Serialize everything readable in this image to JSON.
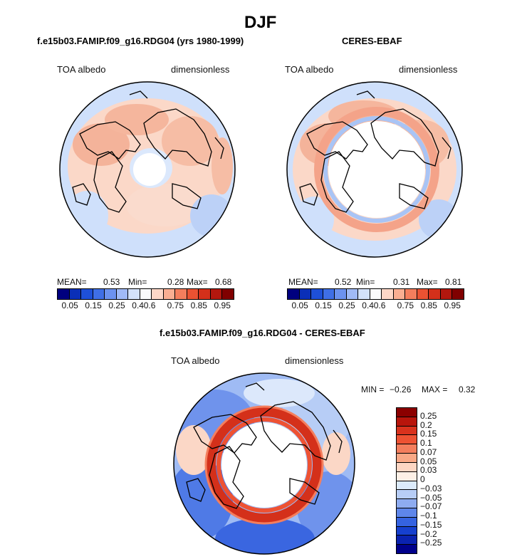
{
  "title": "DJF",
  "panels": [
    {
      "title": "f.e15b03.FAMIP.f09_g16.RDG04 (yrs 1980-1999)",
      "field_label": "TOA albedo",
      "units_label": "dimensionless",
      "mean_label": "MEAN=",
      "mean_value": "0.53",
      "min_label": "Min=",
      "min_value": "0.28",
      "max_label": "Max=",
      "max_value": "0.68"
    },
    {
      "title": "CERES-EBAF",
      "field_label": "TOA albedo",
      "units_label": "dimensionless",
      "mean_label": "MEAN=",
      "mean_value": "0.52",
      "min_label": "Min=",
      "min_value": "0.31",
      "max_label": "Max=",
      "max_value": "0.81"
    }
  ],
  "diff_panel": {
    "title": "f.e15b03.FAMIP.f09_g16.RDG04 - CERES-EBAF",
    "field_label": "TOA albedo",
    "units_label": "dimensionless",
    "min_label": "MIN =",
    "min_value": "−0.26",
    "max_label": "MAX =",
    "max_value": "0.32"
  },
  "colorbar": {
    "colors": [
      "#00007f",
      "#0a2fb8",
      "#1e50d8",
      "#3f6fe6",
      "#6c92ef",
      "#a0baf6",
      "#d3e2fb",
      "#fbfbfb",
      "#fdd7c7",
      "#f9ae92",
      "#f47e5d",
      "#ea5232",
      "#d4301a",
      "#b3170e",
      "#800000"
    ],
    "ticks": [
      "0.05",
      "0.15",
      "0.25",
      "0.4",
      "0.6",
      "0.75",
      "0.85",
      "0.95"
    ]
  },
  "diff_colorbar": {
    "colors": [
      "#8b0000",
      "#b8150c",
      "#d9321d",
      "#ee5233",
      "#f47e5d",
      "#f9a886",
      "#fdd6c3",
      "#fdf0e6",
      "#dcebfb",
      "#b7cdf6",
      "#8eacf1",
      "#5e86ea",
      "#3563e1",
      "#1640cf",
      "#0a22b0",
      "#00008b"
    ],
    "ticks": [
      "0.25",
      "0.2",
      "0.15",
      "0.1",
      "0.07",
      "0.05",
      "0.03",
      "0",
      "−0.03",
      "−0.05",
      "−0.07",
      "−0.1",
      "−0.15",
      "−0.2",
      "−0.25"
    ]
  }
}
